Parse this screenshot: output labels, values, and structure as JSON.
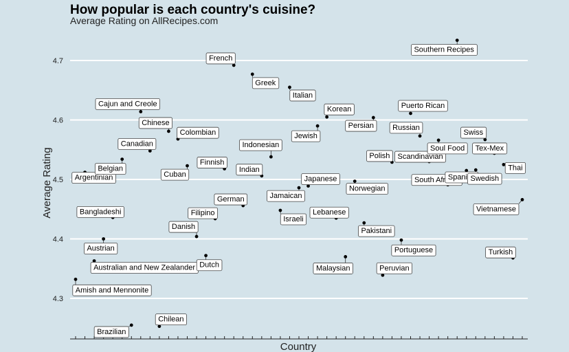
{
  "chart_data": {
    "type": "scatter",
    "title": "How popular is each country's cuisine?",
    "subtitle": "Average Rating on AllRecipes.com",
    "xlabel": "Country",
    "ylabel": "Average Rating",
    "ylim": [
      4.245,
      4.745
    ],
    "yticks": [
      4.3,
      4.4,
      4.5,
      4.6,
      4.7
    ],
    "grid": "horizontal",
    "background": "#d4e3ea",
    "gridline_color": "#ffffff",
    "points": [
      {
        "label": "Amish and Mennonite",
        "value": 4.332
      },
      {
        "label": "Argentinian",
        "value": 4.512
      },
      {
        "label": "Australian and New Zealander",
        "value": 4.363
      },
      {
        "label": "Austrian",
        "value": 4.4
      },
      {
        "label": "Bangladeshi",
        "value": 4.436
      },
      {
        "label": "Belgian",
        "value": 4.534
      },
      {
        "label": "Brazilian",
        "value": 4.255
      },
      {
        "label": "Cajun and Creole",
        "value": 4.614
      },
      {
        "label": "Canadian",
        "value": 4.548
      },
      {
        "label": "Chilean",
        "value": 4.253
      },
      {
        "label": "Chinese",
        "value": 4.581
      },
      {
        "label": "Colombian",
        "value": 4.568
      },
      {
        "label": "Cuban",
        "value": 4.523
      },
      {
        "label": "Danish",
        "value": 4.404
      },
      {
        "label": "Dutch",
        "value": 4.372
      },
      {
        "label": "Filipino",
        "value": 4.434
      },
      {
        "label": "Finnish",
        "value": 4.518
      },
      {
        "label": "French",
        "value": 4.692
      },
      {
        "label": "German",
        "value": 4.456
      },
      {
        "label": "Greek",
        "value": 4.677
      },
      {
        "label": "Indian",
        "value": 4.506
      },
      {
        "label": "Indonesian",
        "value": 4.538
      },
      {
        "label": "Israeli",
        "value": 4.448
      },
      {
        "label": "Italian",
        "value": 4.655
      },
      {
        "label": "Jamaican",
        "value": 4.486
      },
      {
        "label": "Japanese",
        "value": 4.489
      },
      {
        "label": "Jewish",
        "value": 4.59
      },
      {
        "label": "Korean",
        "value": 4.605
      },
      {
        "label": "Lebanese",
        "value": 4.435
      },
      {
        "label": "Malaysian",
        "value": 4.37
      },
      {
        "label": "Norwegian",
        "value": 4.497
      },
      {
        "label": "Pakistani",
        "value": 4.427
      },
      {
        "label": "Persian",
        "value": 4.604
      },
      {
        "label": "Peruvian",
        "value": 4.339
      },
      {
        "label": "Polish",
        "value": 4.529
      },
      {
        "label": "Portuguese",
        "value": 4.398
      },
      {
        "label": "Puerto Rican",
        "value": 4.611
      },
      {
        "label": "Russian",
        "value": 4.573
      },
      {
        "label": "Scandinavian",
        "value": 4.53
      },
      {
        "label": "Soul Food",
        "value": 4.566
      },
      {
        "label": "South African",
        "value": 4.491
      },
      {
        "label": "Southern Recipes",
        "value": 4.734
      },
      {
        "label": "Spanish",
        "value": 4.515
      },
      {
        "label": "Swedish",
        "value": 4.516
      },
      {
        "label": "Swiss",
        "value": 4.567
      },
      {
        "label": "Tex-Mex",
        "value": 4.544
      },
      {
        "label": "Thai",
        "value": 4.525
      },
      {
        "label": "Turkish",
        "value": 4.368
      },
      {
        "label": "Vietnamese",
        "value": 4.466
      }
    ]
  }
}
